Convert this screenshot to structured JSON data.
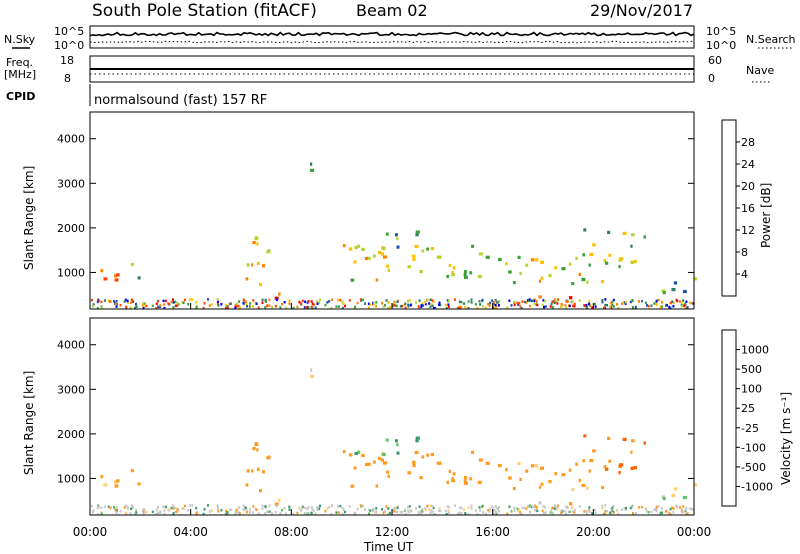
{
  "header": {
    "station": "South Pole Station (fitACF)",
    "beam": "Beam 02",
    "date": "29/Nov/2017"
  },
  "strips": {
    "nsky_label": "N.Sky",
    "nsky_ticks": [
      "10^5",
      "10^0"
    ],
    "nsearch_label": "N.Search",
    "nsearch_ticks": [
      "10^5",
      "10^0"
    ],
    "freq_label": "Freq.",
    "freq_unit": "[MHz]",
    "freq_ticks": [
      "18",
      "8"
    ],
    "nave_label": "Nave",
    "nave_ticks": [
      "60",
      "0"
    ],
    "cpid_label": "CPID",
    "cpid_value": "normalsound (fast) 157 RF"
  },
  "power_panel": {
    "ylabel": "Slant Range [km]",
    "yticks": [
      "4000",
      "3000",
      "2000",
      "1000"
    ],
    "colorbar_label": "Power [dB]",
    "colorbar_ticks": [
      "28",
      "24",
      "20",
      "16",
      "12",
      "8",
      "4"
    ],
    "colors": [
      "#0000ff",
      "#1f4fa8",
      "#2e7d60",
      "#3aa13a",
      "#b8d430",
      "#ffc000",
      "#ff8000",
      "#ff4000",
      "#ff0000"
    ]
  },
  "velocity_panel": {
    "ylabel": "Slant Range [km]",
    "yticks": [
      "4000",
      "3000",
      "2000",
      "1000"
    ],
    "colorbar_label": "Velocity [m s⁻¹]",
    "colorbar_ticks": [
      "1000",
      "500",
      "100",
      "25",
      "-25",
      "-100",
      "-500",
      "-1000"
    ],
    "colors": [
      "#1a3aa0",
      "#2e6fa8",
      "#3a9a6a",
      "#5cc65c",
      "#c8c8c8",
      "#ffd070",
      "#ff9a20",
      "#ff6000",
      "#ff0000"
    ]
  },
  "x_axis": {
    "ticks": [
      "00:00",
      "04:00",
      "08:00",
      "12:00",
      "16:00",
      "20:00",
      "00:00"
    ],
    "label": "Time UT"
  },
  "chart_data": {
    "type": "heatmap",
    "x_range_hours": [
      0,
      24
    ],
    "y_range_km": [
      180,
      4600
    ],
    "power_range_db": [
      0,
      30
    ],
    "velocity_range_ms": [
      -1000,
      1000
    ],
    "scatter_regions": [
      {
        "t0": 0.3,
        "t1": 1.3,
        "r0": 700,
        "r1": 1400,
        "power": 20,
        "velocity": -200
      },
      {
        "t0": 1.4,
        "t1": 2.0,
        "r0": 800,
        "r1": 1200,
        "power": 12,
        "velocity": -150
      },
      {
        "t0": 5.8,
        "t1": 7.3,
        "r0": 700,
        "r1": 1800,
        "power": 18,
        "velocity": -300
      },
      {
        "t0": 6.5,
        "t1": 8.2,
        "r0": 380,
        "r1": 560,
        "power": 26,
        "velocity": -200
      },
      {
        "t0": 8.6,
        "t1": 9.2,
        "r0": 3100,
        "r1": 3500,
        "power": 8,
        "velocity": 20
      },
      {
        "t0": 9.8,
        "t1": 15.5,
        "r0": 700,
        "r1": 1600,
        "power": 17,
        "velocity": -250
      },
      {
        "t0": 10.5,
        "t1": 13.0,
        "r0": 1500,
        "r1": 2000,
        "power": 10,
        "velocity": 100
      },
      {
        "t0": 15.5,
        "t1": 20.5,
        "r0": 700,
        "r1": 1400,
        "power": 16,
        "velocity": -200
      },
      {
        "t0": 17.2,
        "t1": 19.6,
        "r0": 380,
        "r1": 520,
        "power": 27,
        "velocity": -150
      },
      {
        "t0": 19.5,
        "t1": 22.0,
        "r0": 1100,
        "r1": 2000,
        "power": 14,
        "velocity": -500
      },
      {
        "t0": 22.4,
        "t1": 24.0,
        "r0": 400,
        "r1": 900,
        "power": 10,
        "velocity": 20
      }
    ]
  }
}
